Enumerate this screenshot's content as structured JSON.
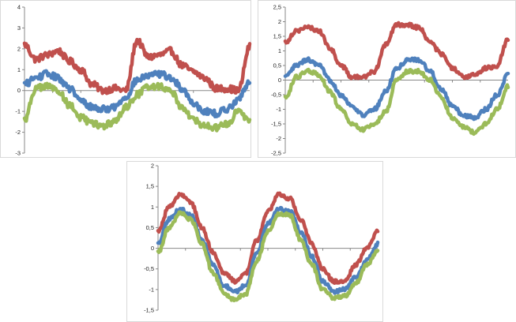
{
  "chart_data": [
    {
      "type": "line",
      "ylabel": "",
      "ylim": [
        -3,
        4
      ],
      "yticks": [
        "4",
        "3",
        "2",
        "1",
        "0",
        "-1",
        "-2",
        "-3"
      ],
      "grid": false,
      "x": [
        0,
        1,
        2,
        3,
        4,
        5,
        6,
        7,
        8,
        9,
        10,
        11,
        12,
        13,
        14,
        15,
        16,
        17,
        18,
        19,
        20
      ],
      "series": [
        {
          "color": "#C0504D",
          "values": [
            2.2,
            1.5,
            1.7,
            1.9,
            1.4,
            1.0,
            0.3,
            0.0,
            0.1,
            0.0,
            2.4,
            1.6,
            1.7,
            1.9,
            1.2,
            0.9,
            0.6,
            0.1,
            0.1,
            0.0,
            2.1
          ]
        },
        {
          "color": "#4F81BD",
          "values": [
            0.3,
            0.6,
            0.8,
            0.6,
            0.1,
            -0.5,
            -0.8,
            -0.9,
            -0.8,
            -0.3,
            0.5,
            0.7,
            0.8,
            0.6,
            0.1,
            -0.6,
            -1.0,
            -1.1,
            -0.9,
            -0.4,
            0.4
          ]
        },
        {
          "color": "#9BBB59",
          "values": [
            -1.4,
            0.1,
            0.2,
            0.0,
            -0.7,
            -1.3,
            -1.6,
            -1.7,
            -1.5,
            -0.8,
            -0.2,
            0.2,
            0.2,
            0.0,
            -0.8,
            -1.4,
            -1.7,
            -1.8,
            -1.6,
            -1.0,
            -1.5
          ]
        }
      ]
    },
    {
      "type": "line",
      "ylabel": "",
      "ylim": [
        -2.5,
        2.5
      ],
      "yticks": [
        "2,5",
        "2",
        "1,5",
        "1",
        "0,5",
        "0",
        "-0,5",
        "-1",
        "-1,5",
        "-2",
        "-2,5"
      ],
      "grid": false,
      "x": [
        0,
        1,
        2,
        3,
        4,
        5,
        6,
        7,
        8,
        9,
        10,
        11,
        12,
        13,
        14,
        15,
        16,
        17,
        18,
        19,
        20
      ],
      "series": [
        {
          "color": "#C0504D",
          "values": [
            1.3,
            1.7,
            1.8,
            1.7,
            1.1,
            0.5,
            0.1,
            0.1,
            0.3,
            1.2,
            1.9,
            1.9,
            1.8,
            1.3,
            0.9,
            0.4,
            0.1,
            0.2,
            0.4,
            0.5,
            1.4
          ]
        },
        {
          "color": "#4F81BD",
          "values": [
            0.1,
            0.5,
            0.7,
            0.5,
            0.0,
            -0.5,
            -0.9,
            -1.2,
            -1.0,
            -0.4,
            0.4,
            0.7,
            0.7,
            0.3,
            -0.3,
            -0.9,
            -1.2,
            -1.3,
            -1.0,
            -0.5,
            0.2
          ]
        },
        {
          "color": "#9BBB59",
          "values": [
            -0.6,
            0.1,
            0.3,
            0.2,
            -0.4,
            -1.0,
            -1.5,
            -1.7,
            -1.5,
            -1.1,
            0.0,
            0.3,
            0.3,
            0.0,
            -0.6,
            -1.3,
            -1.6,
            -1.8,
            -1.5,
            -1.0,
            -0.2
          ]
        }
      ]
    },
    {
      "type": "line",
      "ylabel": "",
      "ylim": [
        -1.5,
        2
      ],
      "yticks": [
        "2",
        "1,5",
        "1",
        "0,5",
        "0",
        "-0,5",
        "-1",
        "-1,5"
      ],
      "grid": false,
      "x": [
        0,
        1,
        2,
        3,
        4,
        5,
        6,
        7,
        8,
        9,
        10,
        11,
        12,
        13,
        14,
        15,
        16,
        17,
        18,
        19,
        20
      ],
      "series": [
        {
          "color": "#C0504D",
          "values": [
            0.4,
            1.0,
            1.3,
            1.1,
            0.5,
            -0.1,
            -0.6,
            -0.8,
            -0.6,
            0.2,
            0.9,
            1.3,
            1.2,
            0.7,
            0.1,
            -0.5,
            -0.8,
            -0.8,
            -0.4,
            0.0,
            0.4
          ]
        },
        {
          "color": "#4F81BD",
          "values": [
            0.1,
            0.7,
            0.95,
            0.8,
            0.2,
            -0.4,
            -0.9,
            -1.05,
            -0.9,
            -0.1,
            0.6,
            0.95,
            0.9,
            0.4,
            -0.2,
            -0.8,
            -1.05,
            -1.0,
            -0.7,
            -0.3,
            0.1
          ]
        },
        {
          "color": "#9BBB59",
          "values": [
            -0.1,
            0.5,
            0.85,
            0.7,
            0.1,
            -0.6,
            -1.1,
            -1.25,
            -1.1,
            -0.3,
            0.4,
            0.85,
            0.8,
            0.2,
            -0.4,
            -1.0,
            -1.2,
            -1.15,
            -0.85,
            -0.4,
            -0.05
          ]
        }
      ]
    }
  ]
}
